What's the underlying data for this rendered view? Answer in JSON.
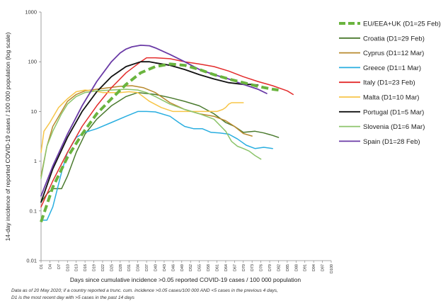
{
  "chart_data": {
    "type": "line",
    "title": "",
    "xlabel": "Days since cumulative incidence >0.05 reported COVID-19 cases / 100 000 population",
    "ylabel": "14-day incidence of reported COVID-19 cases / 100 000 population (log scale)",
    "yscale": "log",
    "ylim": [
      0.01,
      1000
    ],
    "xlim": [
      1,
      100
    ],
    "yticks": [
      "0.01",
      "0.1",
      "1",
      "10",
      "100",
      "1000"
    ],
    "xticks": [
      "D1",
      "D4",
      "D7",
      "D10",
      "D13",
      "D16",
      "D19",
      "D22",
      "D25",
      "D28",
      "D31",
      "D34",
      "D37",
      "D40",
      "D43",
      "D46",
      "D49",
      "D52",
      "D55",
      "D58",
      "D61",
      "D64",
      "D67",
      "D70",
      "D73",
      "D76",
      "D79",
      "D82",
      "D85",
      "D88",
      "D91",
      "D94",
      "D97",
      "D100"
    ],
    "grid": false,
    "legend_position": "right",
    "series": [
      {
        "name": "EU/EEA+UK  (D1=25 Feb)",
        "color": "#6ab43e",
        "dashed": true,
        "width": 4,
        "x": [
          1,
          5,
          10,
          15,
          20,
          25,
          30,
          35,
          40,
          45,
          50,
          55,
          60,
          65,
          70,
          75,
          80,
          82
        ],
        "y": [
          0.06,
          0.3,
          1.2,
          3.5,
          9,
          18,
          35,
          60,
          80,
          90,
          85,
          70,
          55,
          45,
          38,
          32,
          28,
          27
        ]
      },
      {
        "name": "Croatia  (D1=29 Feb)",
        "color": "#4a7a2e",
        "width": 1.5,
        "x": [
          1,
          3,
          5,
          8,
          10,
          13,
          16,
          20,
          25,
          30,
          34,
          37,
          40,
          45,
          50,
          55,
          60,
          64,
          67,
          70,
          74,
          77,
          80,
          82
        ],
        "y": [
          0.15,
          0.22,
          0.28,
          0.28,
          0.5,
          1.5,
          3.5,
          7,
          13,
          20,
          24,
          23,
          22,
          19,
          16,
          13,
          9,
          6,
          5,
          3.8,
          4,
          3.7,
          3.3,
          3
        ]
      },
      {
        "name": "Cyprus  (D1=12 Mar)",
        "color": "#b8892e",
        "width": 1.5,
        "x": [
          1,
          3,
          5,
          8,
          10,
          13,
          16,
          20,
          24,
          28,
          32,
          36,
          40,
          45,
          50,
          55,
          60,
          64,
          67,
          70,
          73
        ],
        "y": [
          0.5,
          2,
          5,
          10,
          16,
          22,
          26,
          28,
          30,
          32,
          33,
          30,
          24,
          15,
          11,
          9,
          8,
          6.5,
          5,
          3.6,
          3.2
        ]
      },
      {
        "name": "Greece  (D1=1 Mar)",
        "color": "#29aee0",
        "width": 1.5,
        "x": [
          1,
          3,
          5,
          8,
          10,
          13,
          16,
          20,
          25,
          30,
          34,
          37,
          40,
          45,
          48,
          50,
          53,
          56,
          59,
          62,
          65,
          68,
          71,
          74,
          77,
          80
        ],
        "y": [
          0.065,
          0.065,
          0.12,
          0.6,
          1.5,
          3,
          3.8,
          4.5,
          6,
          8,
          10,
          10,
          9.8,
          8,
          6,
          5,
          4.5,
          4.5,
          3.8,
          3.7,
          3.5,
          2.8,
          2.1,
          1.8,
          1.9,
          1.8
        ]
      },
      {
        "name": "Italy  (D1=23 Feb)",
        "color": "#e32b2b",
        "width": 1.5,
        "x": [
          1,
          5,
          10,
          15,
          20,
          25,
          30,
          35,
          37,
          40,
          45,
          50,
          55,
          60,
          65,
          70,
          75,
          80,
          85,
          87
        ],
        "y": [
          0.12,
          0.4,
          1.5,
          5,
          13,
          30,
          60,
          100,
          120,
          120,
          115,
          100,
          90,
          80,
          65,
          50,
          40,
          33,
          26,
          22
        ]
      },
      {
        "name": "Malta  (D1=10 Mar)",
        "color": "#f7c548",
        "width": 1.5,
        "x": [
          1,
          2,
          4,
          7,
          10,
          13,
          16,
          19,
          22,
          25,
          28,
          31,
          34,
          38,
          42,
          46,
          50,
          54,
          58,
          61,
          63,
          64,
          65,
          66,
          67,
          68,
          69,
          70
        ],
        "y": [
          1.5,
          4,
          6,
          12,
          18,
          25,
          27,
          26,
          24,
          24,
          24,
          25,
          24,
          16,
          12,
          10,
          10,
          10,
          10,
          10,
          11,
          12,
          14,
          15,
          15,
          15,
          15,
          15
        ]
      },
      {
        "name": "Portugal  (D1=5 Mar)",
        "color": "#111111",
        "width": 1.8,
        "x": [
          1,
          5,
          10,
          15,
          20,
          25,
          30,
          35,
          38,
          40,
          45,
          50,
          55,
          60,
          65,
          70,
          73,
          75
        ],
        "y": [
          0.15,
          0.7,
          3,
          10,
          25,
          50,
          80,
          100,
          100,
          95,
          85,
          70,
          55,
          45,
          38,
          35,
          35,
          34
        ]
      },
      {
        "name": "Slovenia  (D1=6 Mar)",
        "color": "#8cc46b",
        "width": 1.5,
        "x": [
          1,
          3,
          5,
          8,
          10,
          13,
          16,
          20,
          25,
          30,
          34,
          37,
          40,
          45,
          50,
          55,
          60,
          64,
          66,
          68,
          70,
          72,
          74,
          76
        ],
        "y": [
          0.45,
          2,
          4,
          9,
          14,
          20,
          24,
          26,
          27,
          28,
          27,
          24,
          20,
          14,
          11,
          9,
          7,
          4,
          2.5,
          2,
          1.8,
          1.6,
          1.3,
          1.1
        ]
      },
      {
        "name": "Spain  (D1=28 Feb)",
        "color": "#6a3aa6",
        "width": 1.8,
        "x": [
          1,
          5,
          10,
          15,
          20,
          25,
          28,
          30,
          32,
          35,
          38,
          40,
          45,
          50,
          55,
          60,
          65,
          70,
          75,
          78
        ],
        "y": [
          0.2,
          0.8,
          3.5,
          13,
          40,
          100,
          150,
          180,
          200,
          215,
          210,
          190,
          140,
          100,
          70,
          55,
          45,
          35,
          28,
          23
        ]
      }
    ]
  },
  "footnote": {
    "line1": "Data as of 20 May 2020; if a country reported a trunc. cum. incidence >0.05 cases/100 000 AND <5 cases in the previous 4 days,",
    "line2": "D1 is the most recent day with >5 cases in the past 14 days"
  }
}
